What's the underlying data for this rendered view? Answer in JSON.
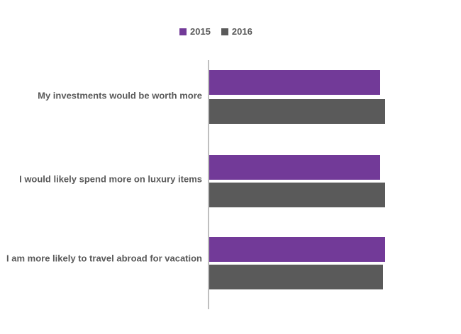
{
  "chart_data": {
    "type": "bar",
    "orientation": "horizontal",
    "title": "",
    "xlabel": "",
    "ylabel": "",
    "categories": [
      "My investments would be worth more",
      "I would likely spend more on luxury items",
      "I am more likely to travel abroad for vacation"
    ],
    "series": [
      {
        "name": "2015",
        "color": "#723A98",
        "values": [
          72,
          72,
          74
        ]
      },
      {
        "name": "2016",
        "color": "#5A5A5A",
        "values": [
          74,
          74,
          73
        ]
      }
    ],
    "xlim": [
      0,
      100
    ],
    "x_axis_labels_visible": false,
    "grid": false,
    "legend_position": "top",
    "axis_line_color": "#BFBFBF",
    "text_color": "#595959",
    "background_color": "#FFFFFF"
  }
}
